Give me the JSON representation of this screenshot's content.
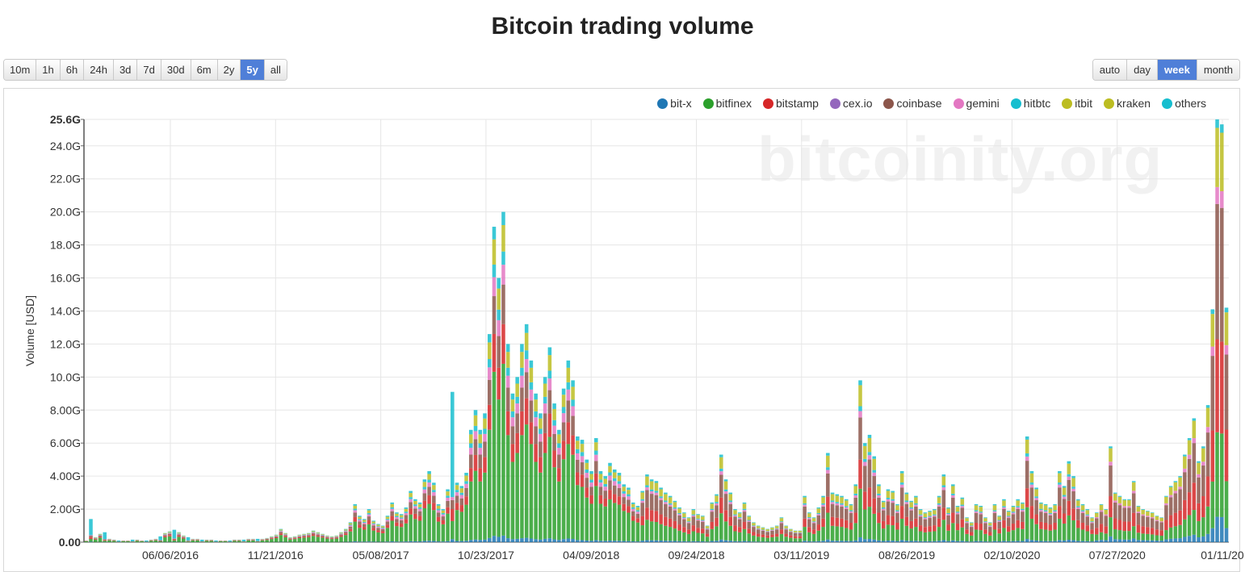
{
  "title": "Bitcoin trading volume",
  "range_buttons": [
    {
      "label": "10m",
      "active": false
    },
    {
      "label": "1h",
      "active": false
    },
    {
      "label": "6h",
      "active": false
    },
    {
      "label": "24h",
      "active": false
    },
    {
      "label": "3d",
      "active": false
    },
    {
      "label": "7d",
      "active": false
    },
    {
      "label": "30d",
      "active": false
    },
    {
      "label": "6m",
      "active": false
    },
    {
      "label": "2y",
      "active": false
    },
    {
      "label": "5y",
      "active": true
    },
    {
      "label": "all",
      "active": false
    }
  ],
  "resolution_buttons": [
    {
      "label": "auto",
      "active": false
    },
    {
      "label": "day",
      "active": false
    },
    {
      "label": "week",
      "active": true
    },
    {
      "label": "month",
      "active": false
    }
  ],
  "watermark": "bitcoinity.org",
  "chart_data": {
    "type": "bar",
    "stacked": true,
    "title": "Bitcoin trading volume",
    "xlabel": "",
    "ylabel": "Volume [USD]",
    "ylim": [
      0,
      25.6
    ],
    "y_unit": "G",
    "y_ticks": [
      "0.00",
      "2.00G",
      "4.00G",
      "6.00G",
      "8.00G",
      "10.0G",
      "12.0G",
      "14.0G",
      "16.0G",
      "18.0G",
      "20.0G",
      "22.0G",
      "24.0G",
      "25.6G"
    ],
    "y_tick_values": [
      0,
      2,
      4,
      6,
      8,
      10,
      12,
      14,
      16,
      18,
      20,
      22,
      24,
      25.6
    ],
    "x_ticks": [
      "06/06/2016",
      "11/21/2016",
      "05/08/2017",
      "10/23/2017",
      "04/09/2018",
      "09/24/2018",
      "03/11/2019",
      "08/26/2019",
      "02/10/2020",
      "07/27/2020",
      "01/11/20"
    ],
    "grid": true,
    "legend_position": "top-right",
    "bar_interval": "week",
    "series": [
      {
        "name": "bit-x",
        "color": "#1f77b4"
      },
      {
        "name": "bitfinex",
        "color": "#2ca02c"
      },
      {
        "name": "bitstamp",
        "color": "#d62728"
      },
      {
        "name": "cex.io",
        "color": "#9467bd"
      },
      {
        "name": "coinbase",
        "color": "#8c564b"
      },
      {
        "name": "gemini",
        "color": "#e377c2"
      },
      {
        "name": "hitbtc",
        "color": "#17becf"
      },
      {
        "name": "itbit",
        "color": "#bcbd22"
      },
      {
        "name": "kraken",
        "color": "#bcbd22"
      },
      {
        "name": "others",
        "color": "#17becf"
      }
    ],
    "stack_order": [
      "bit-x",
      "bitfinex",
      "bitstamp",
      "cex.io",
      "coinbase",
      "gemini",
      "hitbtc",
      "itbit",
      "kraken",
      "others"
    ],
    "weekly_totals": [
      0.1,
      1.4,
      0.3,
      0.5,
      0.6,
      0.2,
      0.15,
      0.1,
      0.1,
      0.1,
      0.15,
      0.15,
      0.1,
      0.1,
      0.15,
      0.2,
      0.35,
      0.55,
      0.65,
      0.75,
      0.6,
      0.4,
      0.3,
      0.2,
      0.2,
      0.15,
      0.15,
      0.15,
      0.1,
      0.1,
      0.1,
      0.1,
      0.15,
      0.15,
      0.15,
      0.2,
      0.2,
      0.2,
      0.2,
      0.25,
      0.35,
      0.45,
      0.8,
      0.55,
      0.3,
      0.35,
      0.45,
      0.5,
      0.55,
      0.7,
      0.6,
      0.5,
      0.4,
      0.35,
      0.4,
      0.6,
      0.8,
      1.2,
      2.3,
      1.6,
      1.4,
      2.0,
      1.3,
      1.1,
      1.0,
      1.6,
      2.4,
      1.8,
      1.7,
      2.1,
      3.1,
      2.6,
      2.4,
      3.8,
      4.3,
      3.6,
      2.3,
      2.0,
      3.2,
      9.1,
      3.6,
      3.4,
      4.2,
      6.8,
      8.0,
      6.8,
      7.8,
      12.6,
      19.1,
      16.0,
      20.0,
      12.0,
      9.0,
      10.0,
      12.0,
      13.2,
      11.0,
      9.0,
      7.8,
      10.0,
      11.8,
      8.4,
      6.8,
      9.3,
      11.0,
      9.8,
      6.4,
      6.2,
      5.0,
      4.3,
      6.3,
      4.3,
      4.0,
      4.8,
      4.4,
      4.2,
      3.5,
      3.3,
      2.4,
      2.2,
      3.1,
      4.1,
      3.8,
      3.7,
      3.3,
      3.0,
      2.8,
      2.5,
      2.1,
      1.8,
      1.5,
      2.0,
      1.7,
      1.6,
      1.0,
      2.4,
      2.9,
      5.3,
      3.8,
      3.0,
      2.0,
      1.8,
      2.4,
      1.6,
      1.2,
      1.0,
      0.9,
      0.8,
      0.9,
      1.0,
      1.5,
      1.0,
      0.8,
      0.7,
      0.7,
      2.8,
      1.8,
      1.5,
      2.1,
      2.8,
      5.4,
      3.0,
      2.9,
      2.8,
      2.6,
      2.3,
      3.5,
      9.8,
      6.0,
      6.5,
      5.2,
      3.5,
      2.5,
      3.2,
      3.1,
      2.3,
      4.3,
      3.0,
      2.5,
      2.8,
      2.0,
      1.8,
      1.9,
      2.0,
      2.8,
      4.1,
      2.1,
      3.5,
      2.2,
      2.7,
      1.5,
      1.2,
      2.3,
      2.2,
      1.5,
      1.2,
      2.3,
      1.6,
      2.6,
      1.9,
      2.2,
      2.6,
      2.4,
      6.4,
      4.3,
      3.3,
      2.4,
      2.3,
      2.1,
      2.3,
      4.3,
      3.4,
      4.9,
      4.0,
      2.6,
      2.3,
      2.0,
      1.5,
      1.8,
      2.3,
      2.0,
      5.8,
      3.0,
      2.8,
      2.6,
      2.6,
      3.7,
      2.2,
      2.0,
      1.9,
      1.8,
      1.6,
      1.5,
      2.8,
      3.4,
      3.7,
      4.0,
      5.3,
      6.3,
      7.5,
      4.9,
      5.8,
      8.3,
      14.1,
      25.6,
      25.3,
      14.2
    ]
  }
}
